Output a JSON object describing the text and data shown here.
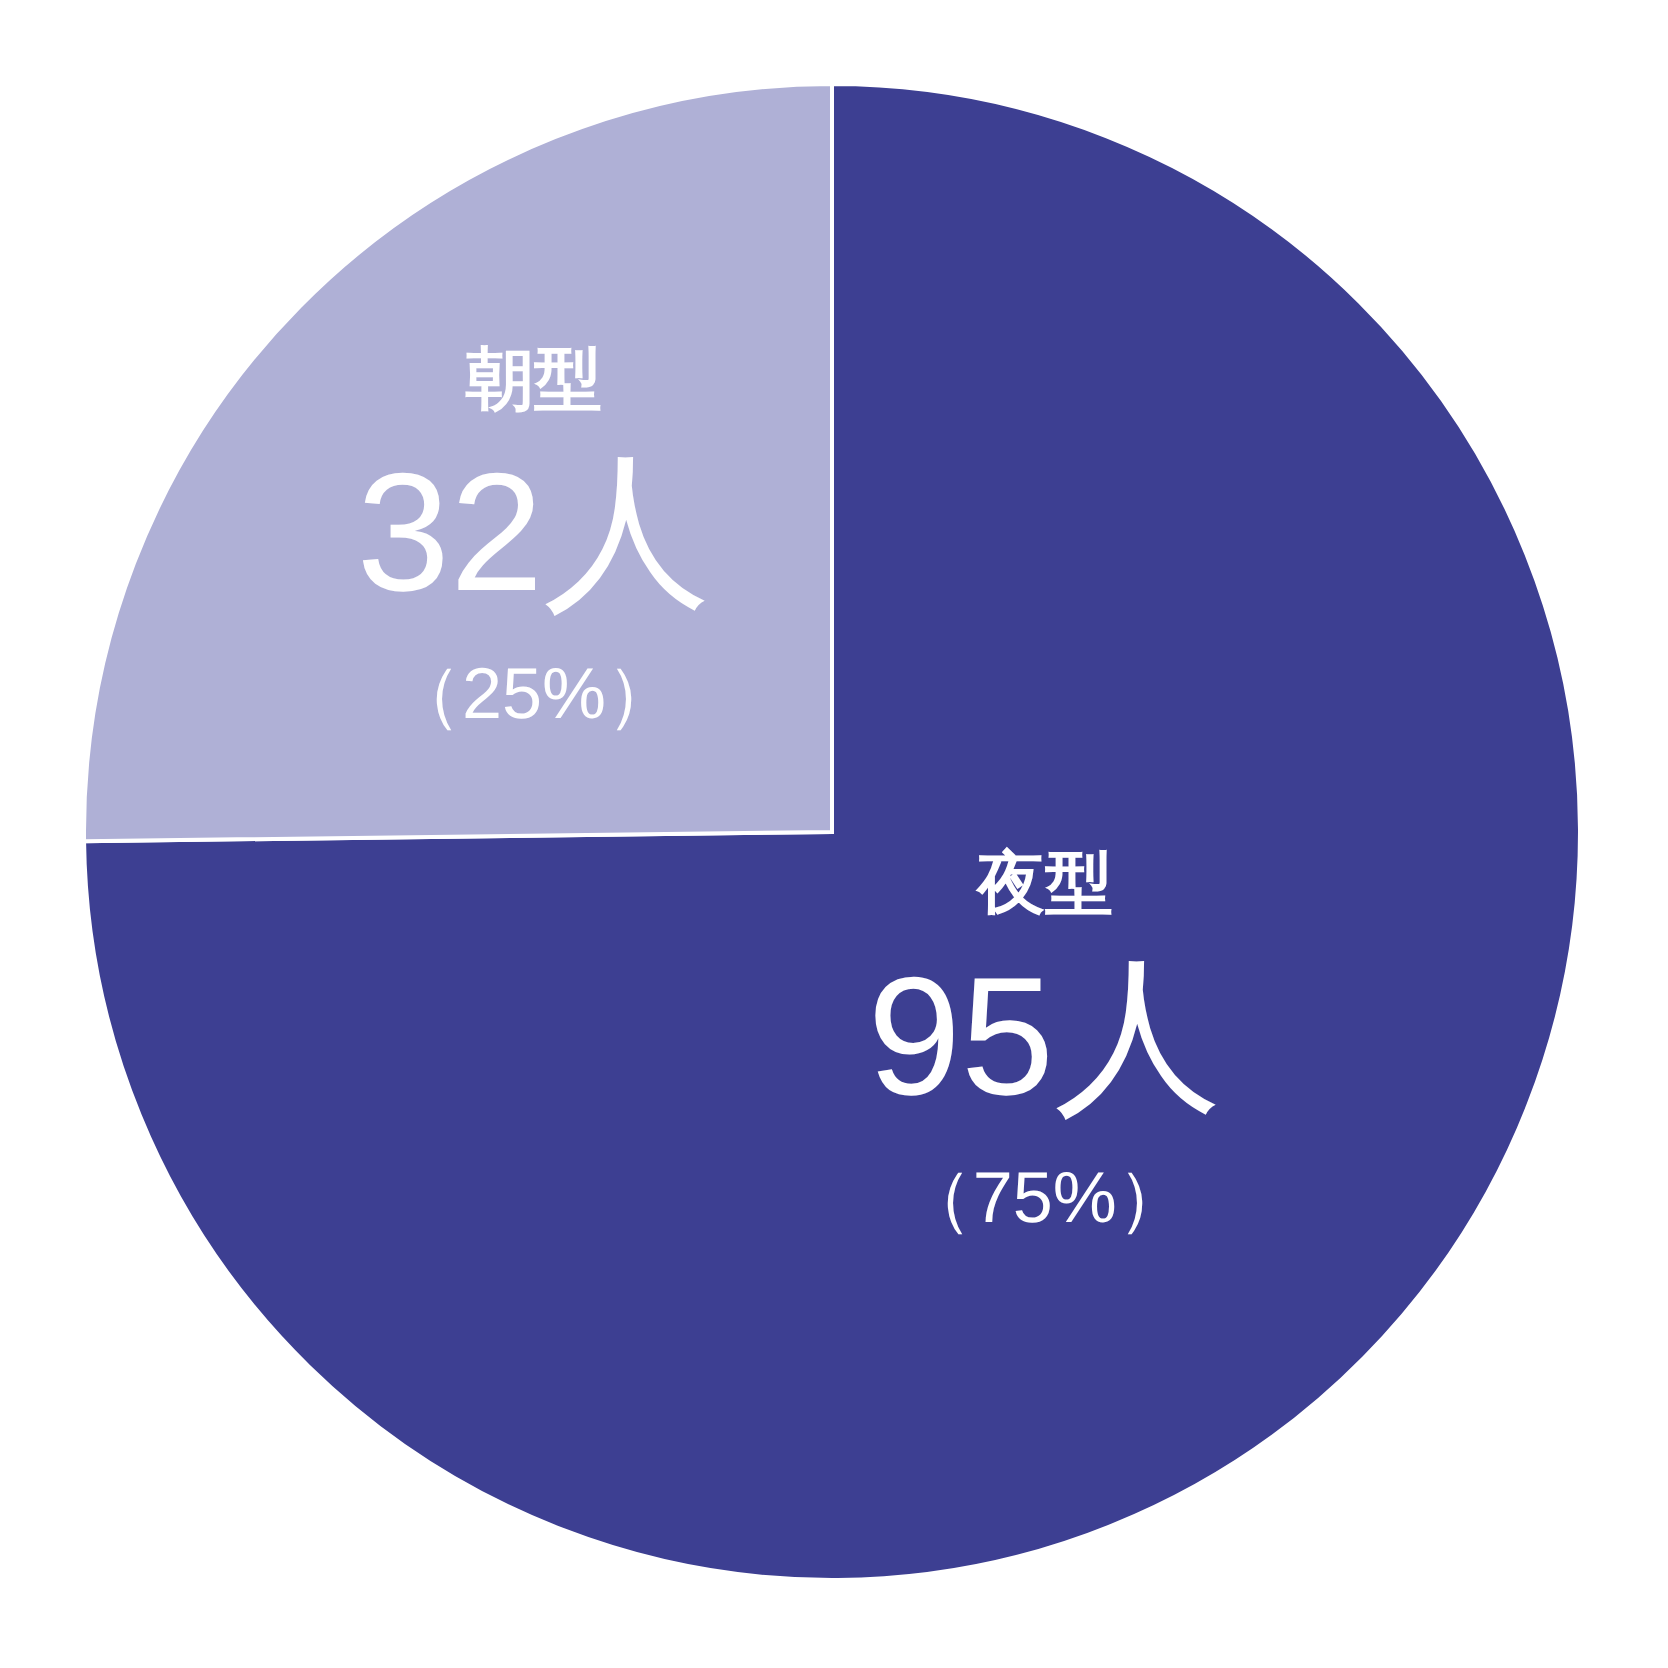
{
  "chart_data": {
    "type": "pie",
    "categories": [
      "夜型",
      "朝型"
    ],
    "values": [
      95,
      32
    ],
    "colors": [
      "#3d3f92",
      "#afb0d6"
    ],
    "value_labels": [
      "95人",
      "32人"
    ],
    "annotations": [
      "（75%）",
      "（25%）"
    ],
    "legend": false
  }
}
